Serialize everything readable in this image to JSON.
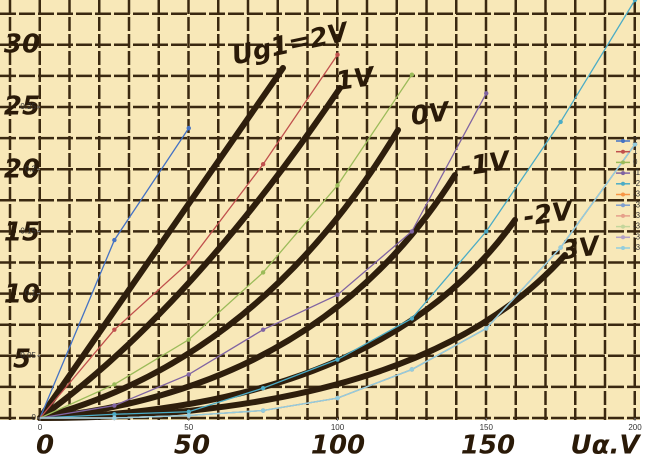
{
  "chart_data": {
    "type": "line",
    "x": [
      0,
      25,
      50,
      75,
      100,
      125,
      150,
      175,
      200
    ],
    "xlim": [
      0,
      200
    ],
    "ylim": [
      0,
      0.336
    ],
    "xticks": [
      0,
      50,
      100,
      150,
      200
    ],
    "yticks": [
      0,
      0.05,
      0.1,
      0.15,
      0.2,
      0.25
    ],
    "legend": "right",
    "series": [
      {
        "name": "2",
        "color": "#4472c4",
        "values": [
          0,
          0.143,
          0.233,
          null,
          null,
          null,
          null,
          null,
          null
        ]
      },
      {
        "name": "1",
        "color": "#c0504d",
        "values": [
          0,
          0.071,
          0.125,
          0.204,
          0.292,
          null,
          null,
          null,
          null
        ]
      },
      {
        "name": "0",
        "color": "#9bbb59",
        "values": [
          0,
          0.027,
          0.063,
          0.117,
          0.187,
          0.276,
          null,
          null,
          null
        ]
      },
      {
        "name": "-1",
        "color": "#8064a2",
        "values": [
          0,
          0.01,
          0.035,
          0.071,
          0.099,
          0.15,
          0.261,
          null,
          null
        ]
      },
      {
        "name": "-2",
        "color": "#4bacc6",
        "values": [
          0,
          0.003,
          0.005,
          0.024,
          0.047,
          0.08,
          0.15,
          0.238,
          0.336
        ]
      },
      {
        "name": "-3",
        "color": "#f79646",
        "values": [
          0,
          0,
          0.002,
          0.006,
          0.016,
          0.039,
          0.072,
          0.137,
          0.22
        ]
      },
      {
        "name": "-3",
        "color": "#7f9fd0",
        "values": [
          0,
          0,
          0.002,
          0.006,
          0.016,
          0.039,
          0.072,
          0.137,
          0.22
        ]
      },
      {
        "name": "-3",
        "color": "#e6a08a",
        "values": [
          0,
          0,
          0.002,
          0.006,
          0.016,
          0.039,
          0.072,
          0.137,
          0.22
        ]
      },
      {
        "name": "-3",
        "color": "#c3d69b",
        "values": [
          0,
          0,
          0.002,
          0.006,
          0.016,
          0.039,
          0.072,
          0.137,
          0.22
        ]
      },
      {
        "name": "-3",
        "color": "#b3a2c7",
        "values": [
          0,
          0,
          0.002,
          0.006,
          0.016,
          0.039,
          0.072,
          0.137,
          0.22
        ]
      },
      {
        "name": "-3",
        "color": "#93cddd",
        "values": [
          0,
          0,
          0.002,
          0.006,
          0.016,
          0.039,
          0.072,
          0.137,
          0.22
        ]
      }
    ]
  },
  "scan": {
    "y_labels": [
      "30",
      "25",
      "20",
      "15",
      "10",
      "5"
    ],
    "x_labels": [
      "0",
      "50",
      "100",
      "150"
    ],
    "axis_label": "Uα.V",
    "curve_labels": [
      "Ug1=2V",
      "1V",
      "0V",
      "-1V",
      "-2V",
      "-3V"
    ]
  }
}
